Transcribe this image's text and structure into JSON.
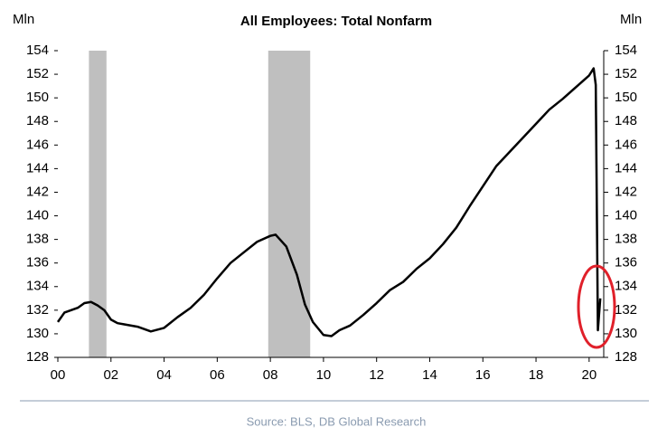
{
  "chart_data": {
    "type": "line",
    "title": "All Employees: Total Nonfarm",
    "y_label": "Mln",
    "y2_label": "Mln",
    "source": "Source: BLS, DB Global Research",
    "x": [
      2000.0,
      2000.25,
      2000.5,
      2000.75,
      2001.0,
      2001.25,
      2001.5,
      2001.75,
      2002.0,
      2002.25,
      2002.5,
      2003.0,
      2003.5,
      2004.0,
      2004.5,
      2005.0,
      2005.5,
      2006.0,
      2006.5,
      2007.0,
      2007.5,
      2008.0,
      2008.2,
      2008.6,
      2009.0,
      2009.3,
      2009.6,
      2010.0,
      2010.3,
      2010.6,
      2011.0,
      2011.5,
      2012.0,
      2012.5,
      2013.0,
      2013.5,
      2014.0,
      2014.5,
      2015.0,
      2015.5,
      2016.0,
      2016.5,
      2017.0,
      2017.5,
      2018.0,
      2018.5,
      2019.0,
      2019.5,
      2020.0,
      2020.17,
      2020.25,
      2020.33,
      2020.42
    ],
    "series": [
      {
        "name": "All Employees: Total Nonfarm",
        "color": "#000000",
        "values": [
          131.0,
          131.8,
          132.0,
          132.2,
          132.6,
          132.7,
          132.4,
          132.0,
          131.2,
          130.9,
          130.8,
          130.6,
          130.2,
          130.5,
          131.4,
          132.2,
          133.3,
          134.7,
          136.0,
          136.9,
          137.8,
          138.3,
          138.4,
          137.4,
          135.0,
          132.5,
          131.0,
          129.9,
          129.8,
          130.3,
          130.7,
          131.6,
          132.6,
          133.7,
          134.4,
          135.5,
          136.4,
          137.6,
          139.0,
          140.8,
          142.5,
          144.2,
          145.4,
          146.6,
          147.8,
          149.0,
          149.9,
          150.9,
          151.9,
          152.5,
          151.1,
          130.3,
          133.0
        ]
      }
    ],
    "shaded_ranges": [
      [
        2001.17,
        2001.83
      ],
      [
        2007.92,
        2009.5
      ]
    ],
    "shade_color": "#bfbfbf",
    "xlim": [
      2000,
      2020.55
    ],
    "xticks": [
      {
        "value": 2000,
        "label": "00"
      },
      {
        "value": 2002,
        "label": "02"
      },
      {
        "value": 2004,
        "label": "04"
      },
      {
        "value": 2006,
        "label": "06"
      },
      {
        "value": 2008,
        "label": "08"
      },
      {
        "value": 2010,
        "label": "10"
      },
      {
        "value": 2012,
        "label": "12"
      },
      {
        "value": 2014,
        "label": "14"
      },
      {
        "value": 2016,
        "label": "16"
      },
      {
        "value": 2018,
        "label": "18"
      },
      {
        "value": 2020,
        "label": "20"
      }
    ],
    "ylim": [
      128,
      154
    ],
    "yticks": [
      128,
      130,
      132,
      134,
      136,
      138,
      140,
      142,
      144,
      146,
      148,
      150,
      152,
      154
    ],
    "y2lim": [
      128,
      154
    ],
    "y2ticks": [
      128,
      130,
      132,
      134,
      136,
      138,
      140,
      142,
      144,
      146,
      148,
      150,
      152,
      154
    ],
    "grid": false
  }
}
